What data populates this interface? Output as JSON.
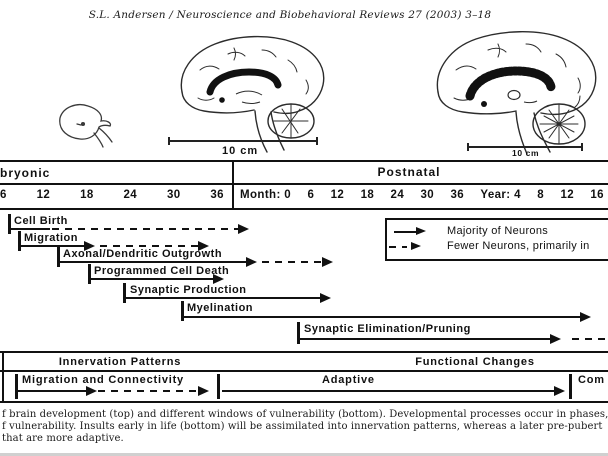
{
  "header": {
    "citation": "S.L. Andersen / Neuroscience and Biobehavioral Reviews 27 (2003) 3–18"
  },
  "illustrations": {
    "center_scalebar_label": "10 cm",
    "right_scalebar_label": "10 cm"
  },
  "timeline": {
    "embryonic_label": "bryonic",
    "postnatal_label": "Postnatal",
    "embryonic_ticks": [
      "6",
      "12",
      "18",
      "24",
      "30",
      "36"
    ],
    "postnatal_ticks": [
      "Month: 0",
      "6",
      "12",
      "18",
      "24",
      "30",
      "36",
      "Year: 4",
      "8",
      "12",
      "16"
    ]
  },
  "processes": [
    {
      "label": "Cell Birth"
    },
    {
      "label": "Migration"
    },
    {
      "label": "Axonal/Dendritic Outgrowth"
    },
    {
      "label": "Programmed Cell Death"
    },
    {
      "label": "Synaptic Production"
    },
    {
      "label": "Myelination"
    },
    {
      "label": "Synaptic Elimination/Pruning"
    }
  ],
  "legend": {
    "solid_label": "Majority of Neurons",
    "dashed_label": "Fewer Neurons, primarily in"
  },
  "bottom_band": {
    "innervation_header": "Innervation Patterns",
    "functional_header": "Functional Changes",
    "migration_connectivity_label": "Migration and Connectivity",
    "adaptive_label": "Adaptive",
    "compensatory_label": "Com"
  },
  "caption": {
    "line1": "f brain development (top) and different windows of vulnerability (bottom). Developmental processes occur in phases,",
    "line2": "f vulnerability. Insults early in life (bottom) will be assimilated into innervation patterns, whereas a later pre-pubert",
    "line3": "that are more adaptive."
  },
  "colors": {
    "ink": "#111111",
    "caption_ink": "#1a1a1a",
    "background": "#ffffff"
  }
}
